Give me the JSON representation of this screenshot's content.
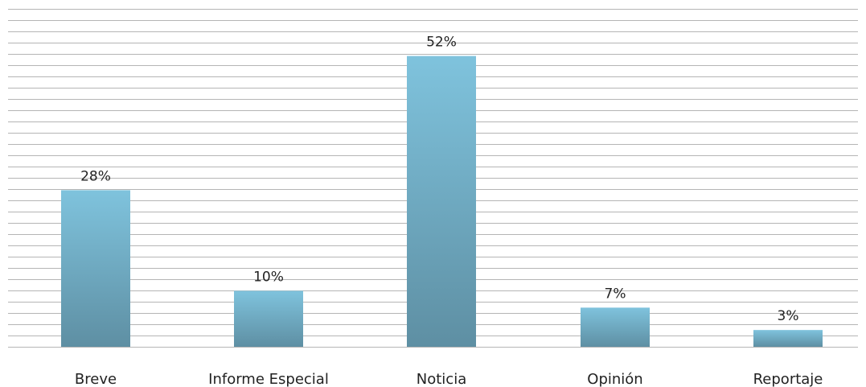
{
  "chart_data": {
    "type": "bar",
    "categories": [
      "Breve",
      "Informe Especial",
      "Noticia",
      "Opinión",
      "Reportaje"
    ],
    "values": [
      28,
      10,
      52,
      7,
      3
    ],
    "value_labels": [
      "28%",
      "10%",
      "52%",
      "7%",
      "3%"
    ],
    "title": "",
    "xlabel": "",
    "ylabel": "",
    "ylim": [
      0,
      60
    ],
    "grid": true,
    "legend": "none",
    "bar_color_top": "#7fc3dd",
    "bar_color_bottom": "#5e8fa3",
    "grid_color": "#b5b5b5"
  }
}
